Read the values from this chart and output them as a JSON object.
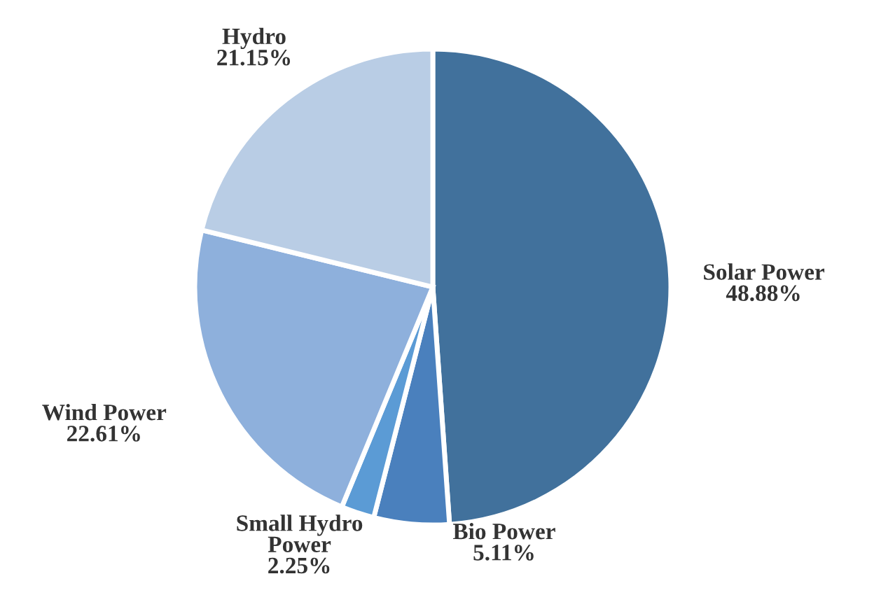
{
  "chart_data": {
    "type": "pie",
    "categories": [
      "Solar Power",
      "Bio Power",
      "Small Hydro Power",
      "Wind Power",
      "Hydro"
    ],
    "values": [
      48.88,
      5.11,
      2.25,
      22.61,
      21.15
    ],
    "value_labels": [
      "48.88%",
      "5.11%",
      "2.25%",
      "22.61%",
      "21.15%"
    ],
    "colors": [
      "#41719c",
      "#4a80bd",
      "#5b9bd5",
      "#8eb0dc",
      "#b9cde5"
    ],
    "legend": false
  }
}
